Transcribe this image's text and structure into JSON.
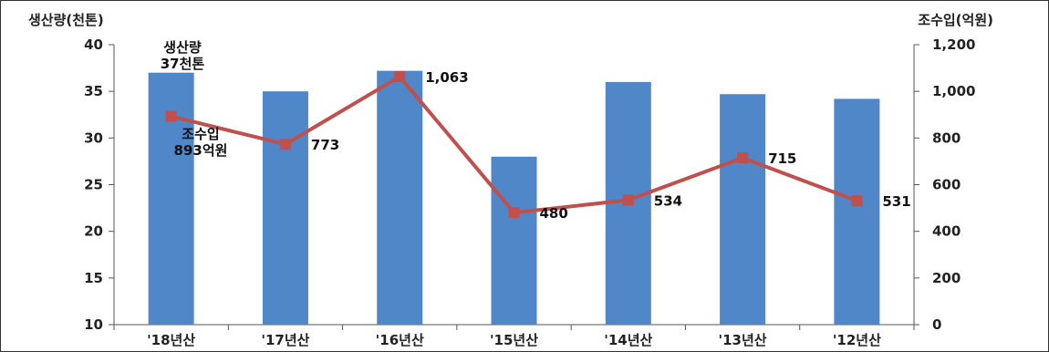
{
  "chart_data": {
    "type": "bar",
    "categories": [
      "'18년산",
      "'17년산",
      "'16년산",
      "'15년산",
      "'14년산",
      "'13년산",
      "'12년산"
    ],
    "series": [
      {
        "type": "bar",
        "axis": "left",
        "values": [
          37,
          35,
          37.2,
          28,
          36,
          34.7,
          34.2
        ],
        "color": "#4f87c8"
      },
      {
        "type": "line",
        "axis": "right",
        "values": [
          893,
          773,
          1063,
          480,
          534,
          715,
          531
        ],
        "labels": [
          "",
          "773",
          "1,063",
          "480",
          "534",
          "715",
          "531"
        ],
        "color": "#c0504d"
      }
    ],
    "ylabel": "생산량(천톤)",
    "ylabel_right": "조수입(억원)",
    "ylim": [
      10,
      40
    ],
    "ylim_right": [
      0,
      1200
    ],
    "yticks": [
      "10",
      "15",
      "20",
      "25",
      "30",
      "35",
      "40"
    ],
    "yticks_right": [
      "0",
      "200",
      "400",
      "600",
      "800",
      "1,000",
      "1,200"
    ],
    "annotations": {
      "production_title": "생산량",
      "production_value": "37천톤",
      "revenue_title": "조수입",
      "revenue_value": "893억원"
    },
    "grid": false,
    "legend": "none"
  }
}
